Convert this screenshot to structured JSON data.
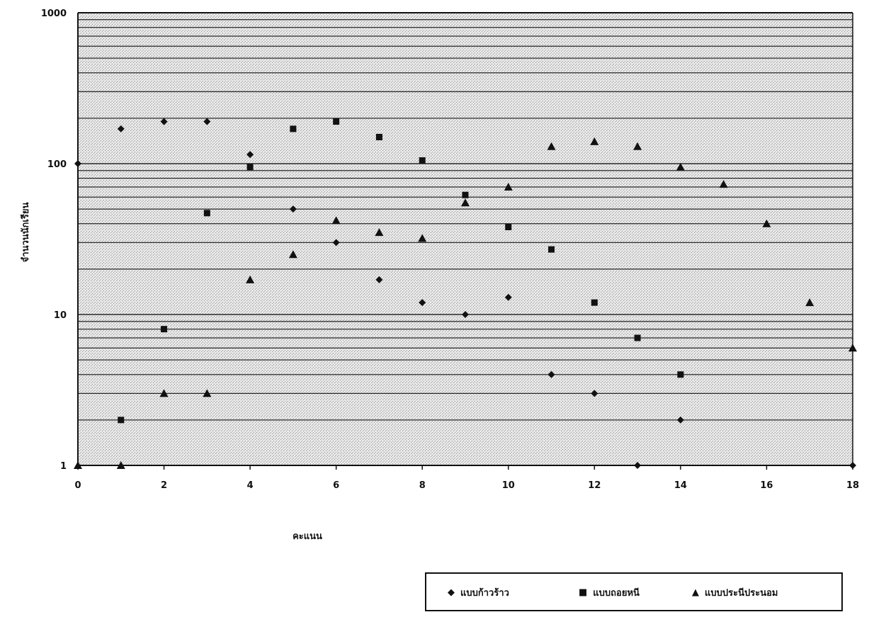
{
  "chart_data": {
    "type": "scatter",
    "xlabel": "คะแนน",
    "ylabel": "จำนวนนักเรียน",
    "y_scale": "log",
    "xlim": [
      0,
      18
    ],
    "ylim": [
      1,
      1000
    ],
    "x_ticks": [
      "0",
      "2",
      "4",
      "6",
      "8",
      "10",
      "12",
      "14",
      "16",
      "18"
    ],
    "y_ticks": [
      "1",
      "10",
      "100",
      "1000"
    ],
    "grid": true,
    "legend_position": "bottom-right",
    "series": [
      {
        "name": "แบบก้าวร้าว",
        "marker": "diamond",
        "color": "#111111",
        "points": [
          [
            0,
            100
          ],
          [
            1,
            170
          ],
          [
            2,
            190
          ],
          [
            3,
            190
          ],
          [
            4,
            115
          ],
          [
            5,
            50
          ],
          [
            6,
            30
          ],
          [
            7,
            17
          ],
          [
            8,
            12
          ],
          [
            9,
            10
          ],
          [
            10,
            13
          ],
          [
            11,
            4
          ],
          [
            12,
            3
          ],
          [
            13,
            1
          ],
          [
            14,
            2
          ],
          [
            18,
            1
          ]
        ]
      },
      {
        "name": "แบบถอยหนี",
        "marker": "square",
        "color": "#111111",
        "points": [
          [
            1,
            2
          ],
          [
            2,
            8
          ],
          [
            3,
            47
          ],
          [
            4,
            95
          ],
          [
            5,
            170
          ],
          [
            6,
            190
          ],
          [
            7,
            150
          ],
          [
            8,
            105
          ],
          [
            9,
            62
          ],
          [
            10,
            38
          ],
          [
            11,
            27
          ],
          [
            12,
            12
          ],
          [
            13,
            7
          ],
          [
            14,
            4
          ]
        ]
      },
      {
        "name": "แบบประนีประนอม",
        "marker": "triangle",
        "color": "#111111",
        "points": [
          [
            0,
            1
          ],
          [
            1,
            1
          ],
          [
            2,
            3
          ],
          [
            3,
            3
          ],
          [
            4,
            17
          ],
          [
            5,
            25
          ],
          [
            6,
            42
          ],
          [
            7,
            35
          ],
          [
            8,
            32
          ],
          [
            9,
            55
          ],
          [
            10,
            70
          ],
          [
            11,
            130
          ],
          [
            12,
            140
          ],
          [
            13,
            130
          ],
          [
            14,
            95
          ],
          [
            15,
            73
          ],
          [
            16,
            40
          ],
          [
            17,
            12
          ],
          [
            18,
            6
          ]
        ]
      }
    ]
  }
}
